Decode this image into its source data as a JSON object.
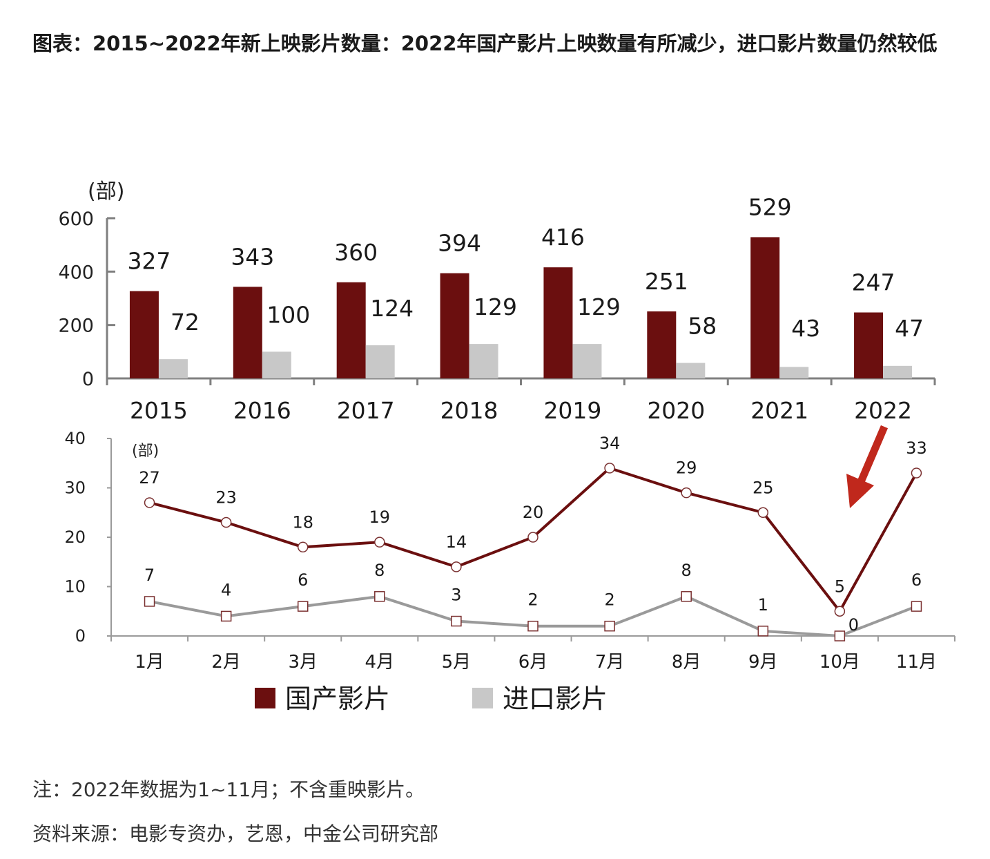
{
  "title": "图表：2015~2022年新上映影片数量：2022年国产影片上映数量有所减少，进口影片数量仍然较低",
  "note": "注：2022年数据为1~11月；不含重映影片。",
  "source": "资料来源：电影专资办，艺恩，中金公司研究部",
  "colors": {
    "domestic": "#6b0f0f",
    "imported": "#c8c8c8",
    "line_imported": "#9a9a9a",
    "arrow": "#c0281c"
  },
  "legend": {
    "domestic": "国产影片",
    "imported": "进口影片"
  },
  "chart_data": [
    {
      "type": "bar",
      "unit": "(部)",
      "categories": [
        "2015",
        "2016",
        "2017",
        "2018",
        "2019",
        "2020",
        "2021",
        "2022"
      ],
      "series": [
        {
          "name": "国产影片",
          "values": [
            327,
            343,
            360,
            394,
            416,
            251,
            529,
            247
          ]
        },
        {
          "name": "进口影片",
          "values": [
            72,
            100,
            124,
            129,
            129,
            58,
            43,
            47
          ]
        }
      ],
      "ylim": [
        0,
        600
      ],
      "yticks": [
        "0",
        "200",
        "400",
        "600"
      ]
    },
    {
      "type": "line",
      "unit": "(部)",
      "categories": [
        "1月",
        "2月",
        "3月",
        "4月",
        "5月",
        "6月",
        "7月",
        "8月",
        "9月",
        "10月",
        "11月"
      ],
      "series": [
        {
          "name": "国产影片",
          "values": [
            27,
            23,
            18,
            19,
            14,
            20,
            34,
            29,
            25,
            5,
            33
          ]
        },
        {
          "name": "进口影片",
          "values": [
            7,
            4,
            6,
            8,
            3,
            2,
            2,
            8,
            1,
            0,
            6
          ]
        }
      ],
      "ylim": [
        0,
        40
      ],
      "yticks": [
        "0",
        "10",
        "20",
        "30",
        "40"
      ],
      "annotation": "arrow pointing to 10月 dip"
    }
  ]
}
